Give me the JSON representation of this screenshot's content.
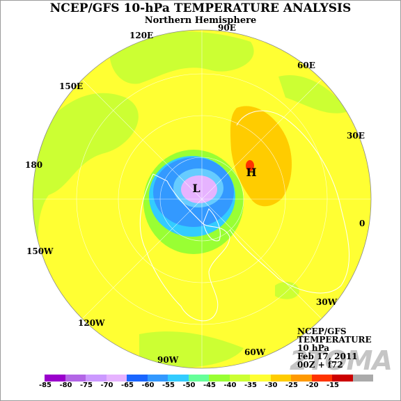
{
  "title": "NCEP/GFS 10-hPa TEMPERATURE ANALYSIS",
  "subtitle": "Northern Hemisphere",
  "longitude_labels": [
    "90E",
    "120E",
    "60E",
    "150E",
    "30E",
    "180",
    "0",
    "150W",
    "30W",
    "120W",
    "60W",
    "90W"
  ],
  "markers": {
    "low": "L",
    "high": "H"
  },
  "info_box": [
    "NCEP/GFS",
    "TEMPERATURE",
    "10 hPa",
    "Feb 17, 2011",
    "00Z + f72"
  ],
  "watermark": "2TOMA",
  "colorbar": {
    "ticks": [
      "-85",
      "-80",
      "-75",
      "-70",
      "-65",
      "-60",
      "-55",
      "-50",
      "-45",
      "-40",
      "-35",
      "-30",
      "-25",
      "-20",
      "-15"
    ],
    "colors": [
      "#9a00cc",
      "#b366e6",
      "#cc99ff",
      "#e6b3ff",
      "#1a66ff",
      "#3399ff",
      "#33ccff",
      "#66ff99",
      "#99ff33",
      "#ccff33",
      "#ffff33",
      "#ffcc00",
      "#ff9900",
      "#ff3300",
      "#cc0000",
      "#aaaaaa"
    ]
  },
  "colors": {
    "background_field": "#ffff33",
    "warm_field": "#ffcc00",
    "cold_core": "#e6b3ff",
    "ring_blue": "#3399ff",
    "ring_cyan": "#33ccff",
    "ring_green": "#99ff33",
    "lime_field": "#ccff33"
  }
}
